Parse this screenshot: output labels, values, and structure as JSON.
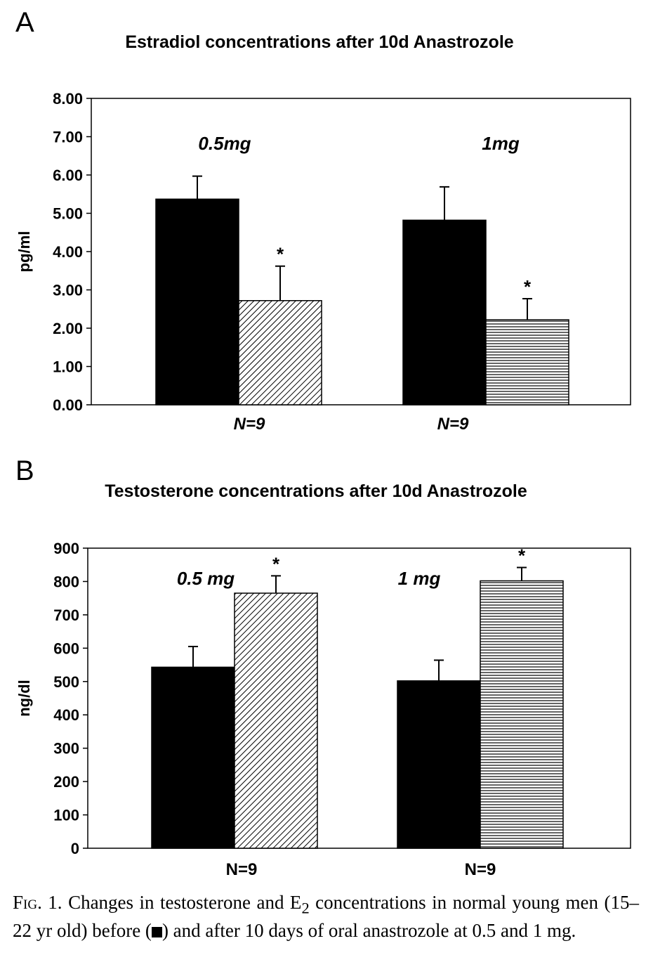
{
  "chart_data": [
    {
      "type": "bar",
      "panel_letter": "A",
      "title": "Estradiol concentrations after 10d Anastrozole",
      "ylabel": "pg/ml",
      "ylim": [
        0,
        8
      ],
      "yticks": [
        "0.00",
        "1.00",
        "2.00",
        "3.00",
        "4.00",
        "5.00",
        "6.00",
        "7.00",
        "8.00"
      ],
      "categories": [
        "N=9",
        "N=9"
      ],
      "group_labels": [
        "0.5mg",
        "1mg"
      ],
      "series": [
        {
          "values": [
            5.37,
            4.82
          ],
          "errors": [
            0.6,
            0.87
          ],
          "fill": "solid"
        },
        {
          "values": [
            2.72,
            2.22
          ],
          "errors": [
            0.9,
            0.55
          ],
          "fill": "diagonal-hatch",
          "fill_by_group": [
            "diagonal-hatch",
            "horizontal-lines"
          ],
          "annotation": "*"
        }
      ],
      "grid": false,
      "legend": "none"
    },
    {
      "type": "bar",
      "panel_letter": "B",
      "title": "Testosterone concentrations after 10d Anastrozole",
      "ylabel": "ng/dl",
      "ylim": [
        0,
        900
      ],
      "yticks": [
        "0",
        "100",
        "200",
        "300",
        "400",
        "500",
        "600",
        "700",
        "800",
        "900"
      ],
      "categories": [
        "N=9",
        "N=9"
      ],
      "group_labels": [
        "0.5 mg",
        "1  mg"
      ],
      "series": [
        {
          "values": [
            543,
            502
          ],
          "errors": [
            62,
            62
          ],
          "fill": "solid"
        },
        {
          "values": [
            765,
            802
          ],
          "errors": [
            52,
            40
          ],
          "fill": "diagonal-hatch",
          "fill_by_group": [
            "diagonal-hatch",
            "horizontal-lines"
          ],
          "annotation": "*"
        }
      ],
      "grid": false,
      "legend": "none"
    }
  ],
  "caption": {
    "fig_label": "Fig. 1.",
    "text_before_symbol": "Changes in testosterone and E",
    "subscript": "2",
    "text_middle": " concentrations in normal young men (15–22 yr old) before (",
    "text_after_symbol": ") and after 10 days of oral anastrozole at 0.5 and 1 mg."
  }
}
